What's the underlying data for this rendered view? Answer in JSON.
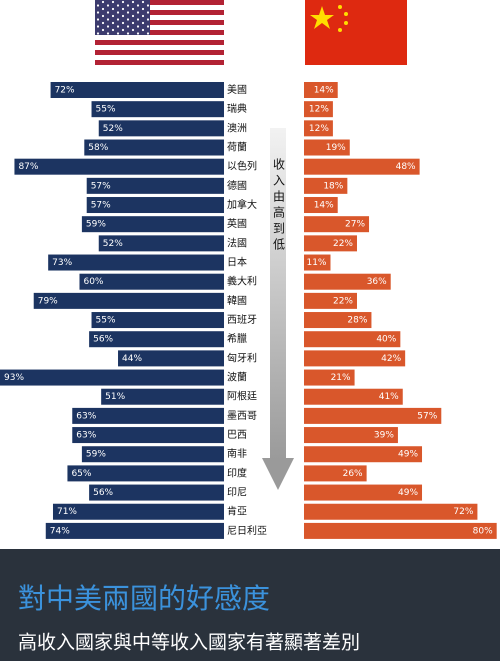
{
  "chart_data": {
    "type": "butterfly",
    "title": "對中美兩國的好感度",
    "subtitle": "高收入國家與中等收入國家有著顯著差別",
    "annotation": "收入由高到低",
    "categories": [
      "美國",
      "瑞典",
      "澳洲",
      "荷蘭",
      "以色列",
      "德國",
      "加拿大",
      "英國",
      "法國",
      "日本",
      "義大利",
      "韓國",
      "西班牙",
      "希臘",
      "匈牙利",
      "波蘭",
      "阿根廷",
      "墨西哥",
      "巴西",
      "南非",
      "印度",
      "印尼",
      "肯亞",
      "尼日利亞"
    ],
    "series": [
      {
        "color": "#1c3461",
        "values": [
          72,
          55,
          52,
          58,
          87,
          57,
          57,
          59,
          52,
          73,
          60,
          79,
          55,
          56,
          44,
          93,
          51,
          63,
          63,
          59,
          65,
          56,
          71,
          74
        ],
        "value_labels": [
          "72%",
          "55%",
          "52%",
          "58%",
          "87%",
          "57%",
          "57%",
          "59%",
          "52%",
          "73%",
          "60%",
          "79%",
          "55%",
          "56%",
          "44%",
          "93%",
          "51%",
          "63%",
          "63%",
          "59%",
          "65%",
          "56%",
          "71%",
          "74%"
        ]
      },
      {
        "color": "#d9572b",
        "values": [
          14,
          12,
          12,
          19,
          48,
          18,
          14,
          27,
          22,
          11,
          36,
          22,
          28,
          40,
          42,
          21,
          41,
          57,
          39,
          49,
          26,
          49,
          72,
          80
        ],
        "value_labels": [
          "14%",
          "12%",
          "12%",
          "19%",
          "48%",
          "18%",
          "14%",
          "27%",
          "22%",
          "11%",
          "36%",
          "22%",
          "28%",
          "40%",
          "42%",
          "21%",
          "41%",
          "57%",
          "39%",
          "49%",
          "26%",
          "49%",
          "72%",
          "80%"
        ]
      }
    ],
    "xlim": [
      0,
      93
    ]
  }
}
